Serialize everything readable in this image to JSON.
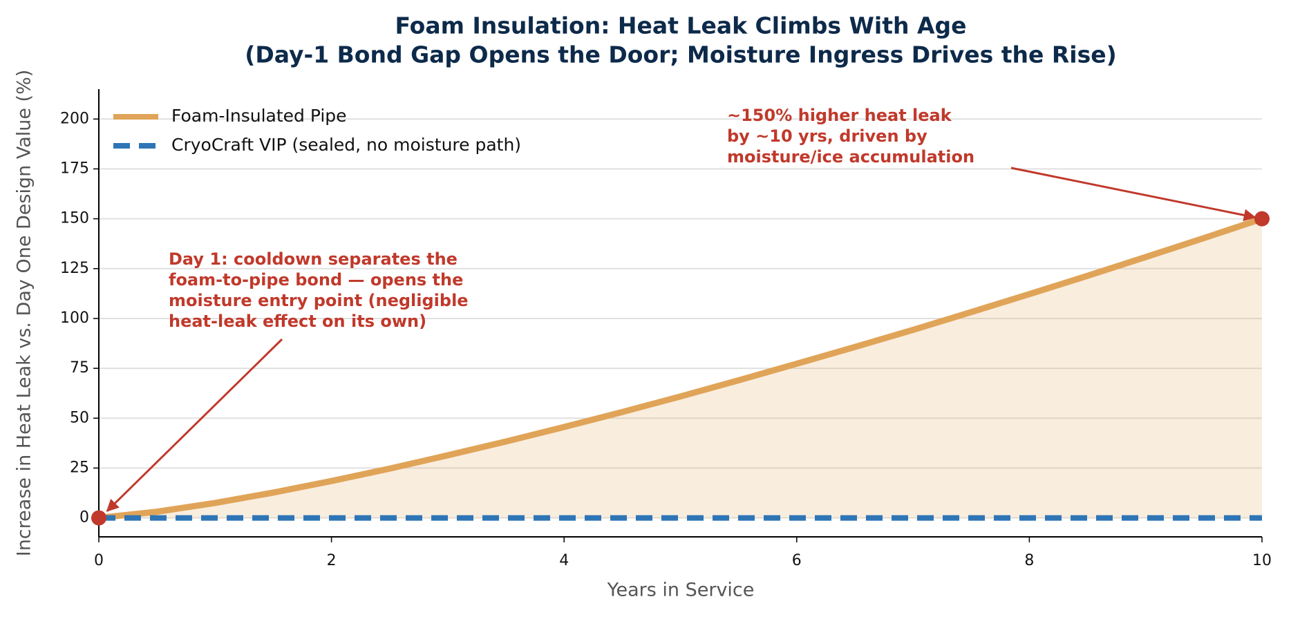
{
  "chart_data": {
    "type": "line",
    "title": "Foam Insulation: Heat Leak Climbs With Age",
    "subtitle": "(Day-1 Bond Gap Opens the Door; Moisture Ingress Drives the Rise)",
    "xlabel": "Years in Service",
    "ylabel": "Increase in Heat Leak vs. Day One Design Value (%)",
    "xlim": [
      0,
      10
    ],
    "ylim": [
      -9.5,
      215
    ],
    "xticks": [
      0,
      2,
      4,
      6,
      8,
      10
    ],
    "yticks": [
      0,
      25,
      50,
      75,
      100,
      125,
      150,
      175,
      200
    ],
    "grid": true,
    "legend": "upper left",
    "series": [
      {
        "name": "Foam-Insulated Pipe",
        "color": "#e0a458",
        "fill": true,
        "dash": false,
        "x": [
          0,
          0.5,
          1,
          1.5,
          2,
          2.5,
          3,
          3.5,
          4,
          4.5,
          5,
          5.5,
          6,
          6.5,
          7,
          7.5,
          8,
          8.5,
          9,
          9.5,
          10
        ],
        "values": [
          0,
          3.1,
          7.5,
          12.7,
          18.5,
          24.7,
          31.4,
          38.3,
          45.6,
          53.1,
          60.9,
          69.0,
          77.3,
          85.7,
          94.3,
          103.2,
          112.2,
          121.4,
          130.8,
          140.3,
          150
        ]
      },
      {
        "name": "CryoCraft VIP (sealed, no moisture path)",
        "color": "#2e75b6",
        "fill": false,
        "dash": true,
        "x": [
          0,
          10
        ],
        "values": [
          0,
          0
        ]
      }
    ],
    "annotations": [
      {
        "lines": [
          "Day 1: cooldown separates the",
          "foam-to-pipe bond — opens the",
          "moisture entry point (negligible",
          "heat-leak effect on its own)"
        ],
        "x": 0,
        "y": 0,
        "color": "#c0392b"
      },
      {
        "lines": [
          "~150% higher heat leak",
          "by ~10 yrs, driven by",
          "moisture/ice accumulation"
        ],
        "x": 10,
        "y": 150,
        "color": "#c0392b"
      }
    ]
  }
}
